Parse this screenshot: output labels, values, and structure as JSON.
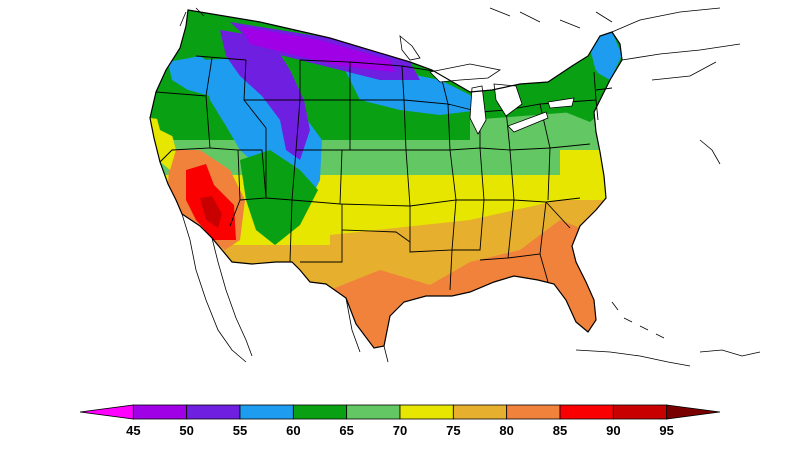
{
  "map": {
    "palette": {
      "45": "#ff00ff",
      "50": "#a000e6",
      "55": "#6f1fe0",
      "60": "#1e9cf0",
      "65": "#0aa014",
      "70": "#63c864",
      "75": "#e6e600",
      "80": "#e6af2d",
      "85": "#f0823c",
      "90": "#fa0000",
      "95": "#c80000",
      "100": "#780000"
    },
    "states_line_color": "#000000",
    "coast_line_color": "#000000"
  },
  "legend": {
    "colors": [
      "#ff00ff",
      "#a000e6",
      "#6f1fe0",
      "#1e9cf0",
      "#0aa014",
      "#63c864",
      "#e6e600",
      "#e6af2d",
      "#f0823c",
      "#fa0000",
      "#c80000",
      "#780000"
    ],
    "ticks": [
      "45",
      "50",
      "55",
      "60",
      "65",
      "70",
      "75",
      "80",
      "85",
      "90",
      "95"
    ]
  }
}
